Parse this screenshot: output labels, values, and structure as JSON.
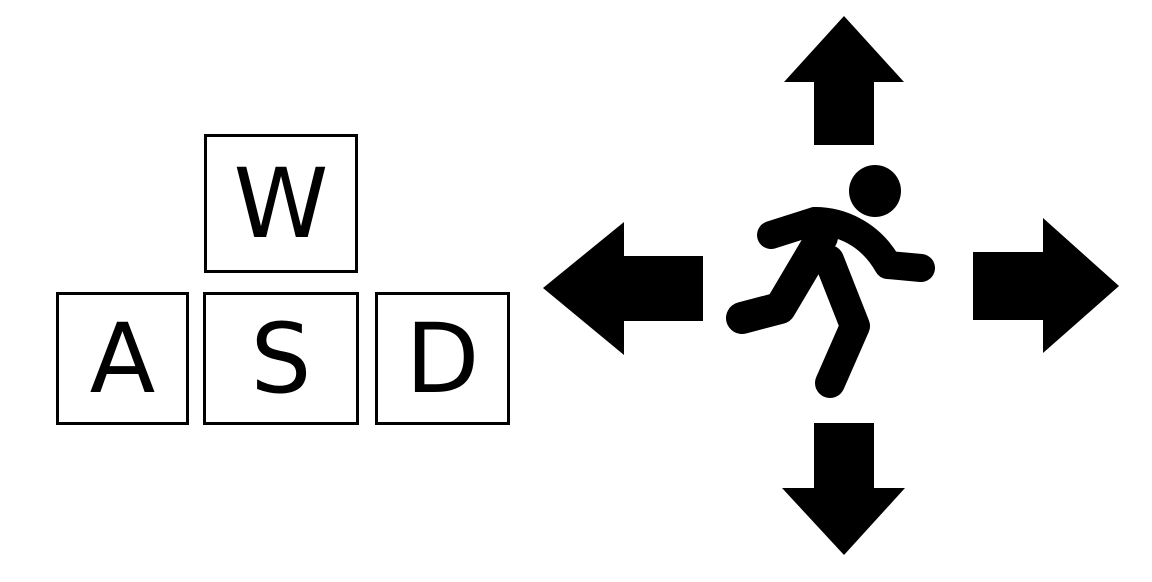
{
  "keys": {
    "up": "W",
    "left": "A",
    "down": "S",
    "right": "D"
  },
  "colors": {
    "ink": "#000000",
    "background": "#ffffff"
  },
  "icons": {
    "runner": "running-person-icon",
    "arrows": [
      "arrow-up-icon",
      "arrow-left-icon",
      "arrow-right-icon",
      "arrow-down-icon"
    ]
  }
}
